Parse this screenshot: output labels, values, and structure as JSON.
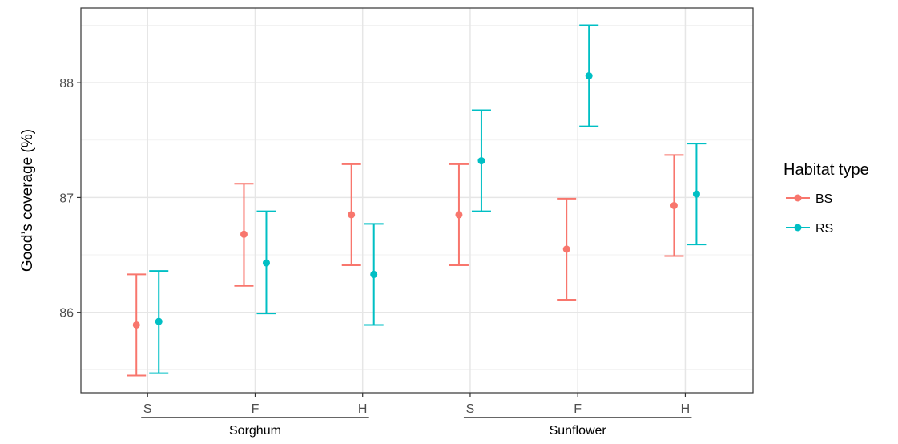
{
  "chart_data": {
    "type": "scatter",
    "ylabel": "Good’s coverage (%)",
    "xlabel": "",
    "ylim": [
      85.3,
      88.65
    ],
    "y_ticks": [
      86,
      87,
      88
    ],
    "y_tick_labels": [
      "86",
      "87",
      "88"
    ],
    "categories": [
      "S",
      "F",
      "H",
      "S",
      "F",
      "H"
    ],
    "groups": [
      {
        "label": "Sorghum",
        "categories": [
          0,
          1,
          2
        ]
      },
      {
        "label": "Sunflower",
        "categories": [
          3,
          4,
          5
        ]
      }
    ],
    "legend": {
      "title": "Habitat type",
      "position": "right"
    },
    "grid": true,
    "series": [
      {
        "name": "BS",
        "color": "#F8766D",
        "values": [
          85.89,
          86.68,
          86.85,
          86.85,
          86.55,
          86.93
        ],
        "lower": [
          85.45,
          86.23,
          86.41,
          86.41,
          86.11,
          86.49
        ],
        "upper": [
          86.33,
          87.12,
          87.29,
          87.29,
          86.99,
          87.37
        ]
      },
      {
        "name": "RS",
        "color": "#00BFC4",
        "values": [
          85.92,
          86.43,
          86.33,
          87.32,
          88.06,
          87.03
        ],
        "lower": [
          85.47,
          85.99,
          85.89,
          86.88,
          87.62,
          86.59
        ],
        "upper": [
          86.36,
          86.88,
          86.77,
          87.76,
          88.5,
          87.47
        ]
      }
    ]
  }
}
